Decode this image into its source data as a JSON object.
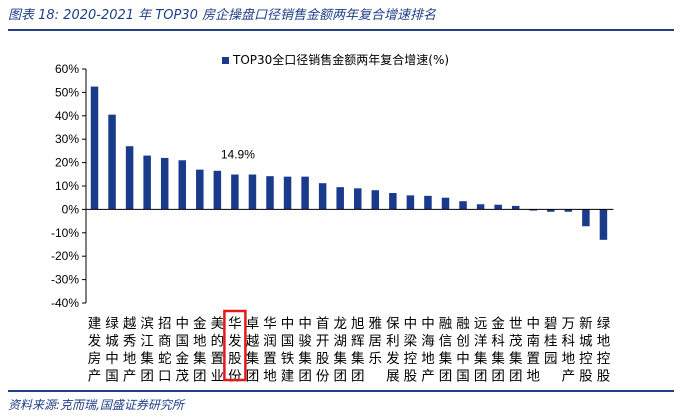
{
  "figure": {
    "title": "图表 18:  2020-2021 年 TOP30 房企操盘口径销售金额两年复合增速排名",
    "source": "资料来源:克而瑞,国盛证券研究所"
  },
  "colors": {
    "bar": "#1a3b8c",
    "highlight": "#e21a1a",
    "frame": "#1f3f86"
  },
  "chart_data": {
    "type": "bar",
    "categories": [
      "建发房产",
      "绿城中国",
      "越秀地产",
      "滨江集团",
      "招商蛇口",
      "中国金茂",
      "金地集团",
      "美的置业",
      "华发股份",
      "卓越集团",
      "华润置地",
      "中国铁建",
      "中骏集团",
      "首开股份",
      "龙湖集团",
      "旭辉集团",
      "雅居乐",
      "保利发展",
      "中梁控股",
      "中海地产",
      "融信集团",
      "融创中国",
      "远洋集团",
      "金科集团",
      "世茂集团",
      "中南置地",
      "碧桂园",
      "万科地产",
      "新城控股",
      "绿地控股"
    ],
    "series": [
      {
        "name": "TOP30全口径销售金额两年复合增速(%)",
        "values": [
          52.5,
          40.5,
          27.0,
          23.0,
          22.0,
          21.0,
          17.0,
          16.5,
          14.9,
          14.9,
          14.2,
          14.0,
          14.0,
          11.2,
          9.5,
          9.0,
          8.2,
          7.0,
          6.0,
          5.8,
          5.0,
          3.5,
          2.2,
          2.0,
          1.5,
          -0.5,
          -1.0,
          -1.0,
          -7.2,
          -13.0
        ]
      }
    ],
    "highlight_index": 8,
    "annotation": {
      "index": 8,
      "text": "14.9%"
    },
    "ylim": [
      -40,
      60
    ],
    "yticks": [
      "60%",
      "50%",
      "40%",
      "30%",
      "20%",
      "10%",
      "0%",
      "-10%",
      "-20%",
      "-30%",
      "-40%"
    ],
    "legend_position": "top-center",
    "grid": false
  }
}
